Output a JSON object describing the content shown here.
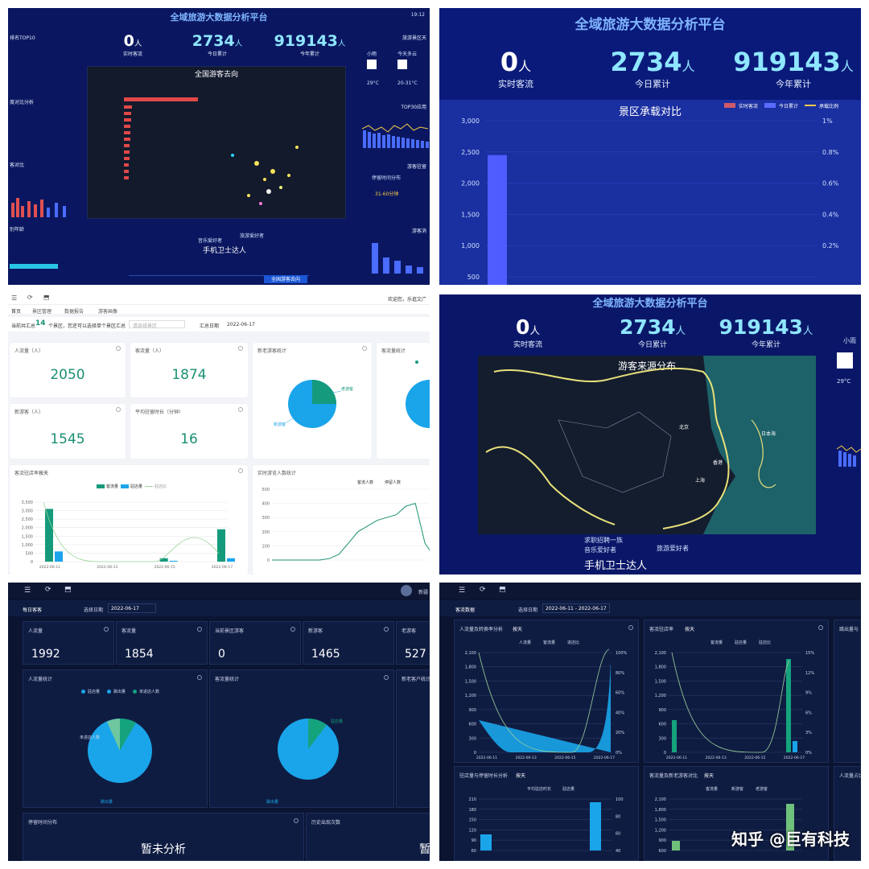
{
  "dashboard": {
    "title": "全域旅游大数据分析平台",
    "time": "19:12",
    "kpi": [
      {
        "value": "0",
        "unit": "人",
        "label": "实时客流"
      },
      {
        "value": "2734",
        "unit": "人",
        "label": "今日累计"
      },
      {
        "value": "919143",
        "unit": "人",
        "label": "今年累计"
      }
    ],
    "left_labels": [
      "排名TOP10",
      "度对比分析",
      "客对比",
      "别年龄"
    ],
    "right_labels": [
      "旅游景区天",
      "TOP30应用",
      "游客驻留",
      "停留时间分布",
      "游客消"
    ],
    "weather": [
      {
        "name": "小雨",
        "temp": "29°C"
      },
      {
        "name": "今天多云",
        "temp": "20-31°C"
      }
    ],
    "stay_range": "31-60分钟",
    "map_title": "全国游客去向",
    "tags": [
      "手机卫士达人",
      "音乐爱好者",
      "旅游爱好者"
    ],
    "bottom_tabs": [
      "全国游客去向"
    ]
  },
  "capacity": {
    "title": "全域旅游大数据分析平台",
    "chart_title": "景区承载对比",
    "legend": [
      "实时客流",
      "今日累计",
      "承载比例"
    ]
  },
  "source": {
    "title": "全域旅游大数据分析平台",
    "map_title": "游客来源分布",
    "weather": {
      "name": "小雨",
      "temp": "29°C"
    },
    "places": [
      "北京",
      "日本海",
      "香港",
      "上海"
    ],
    "tags": [
      "手机卫士达人",
      "音乐爱好者",
      "旅游爱好者",
      "求职招聘一族"
    ]
  },
  "white_admin": {
    "tabs": [
      "首页",
      "景区管理",
      "数据报告",
      "游客画像"
    ],
    "user": "欢迎您，乐逛文广",
    "notice_prefix": "当前共汇总",
    "notice_count": "14",
    "notice_suffix": "个景区，您还可以选择单个景区汇总",
    "select_placeholder": "请选择景区",
    "date_label": "汇总日期",
    "date_value": "2022-06-17",
    "cards": [
      {
        "label": "人流量（人）",
        "value": "2050"
      },
      {
        "label": "客流量（人）",
        "value": "1874"
      },
      {
        "label": "新游客（人）",
        "value": "1545"
      },
      {
        "label": "平均驻留时长（分钟）",
        "value": "16"
      }
    ],
    "pie1_title": "新老游客统计",
    "pie1_labels": [
      "老游客",
      "新游客"
    ],
    "pie2_title": "客流量统计",
    "bar_title": "客流驻店率",
    "bar_select": "按天",
    "bar_legend": [
      "客流量",
      "驻店量",
      "驻店比"
    ],
    "line_title": "实时游览人数统计",
    "line_legend": [
      "客流人数",
      "停留人数"
    ]
  },
  "dark_admin": {
    "section": "每日客客",
    "date_label": "选择日期",
    "date_value": "2022-06-17",
    "cards": [
      {
        "label": "人流量",
        "value": "1992"
      },
      {
        "label": "客流量",
        "value": "1854"
      },
      {
        "label": "当前景区游客",
        "value": "0"
      },
      {
        "label": "新游客",
        "value": "1465"
      },
      {
        "label": "老游客",
        "value": "527"
      }
    ],
    "pie1_title": "人流量统计",
    "pie1_legend": [
      "驻店量",
      "跳出量",
      "未进店人数"
    ],
    "pie2_title": "客流量统计",
    "right_title": "新老客户统计",
    "stay_title": "停留时间分布",
    "history_title": "历史出现次数",
    "no_analysis": "暂未分析",
    "user": "新疆"
  },
  "dark_charts": {
    "section": "客流数据",
    "date_label": "选择日期",
    "date_value": "2022-06-11 - 2022-06-17",
    "charts": [
      {
        "title": "人流量及转换率分析",
        "select": "按天",
        "legend": [
          "人流量",
          "客流量",
          "进店比"
        ]
      },
      {
        "title": "客流驻店率",
        "select": "按天",
        "legend": [
          "客流量",
          "驻店量",
          "驻店比"
        ]
      },
      {
        "title": "驻店量与停留时长分析",
        "select": "按天",
        "legend": [
          "平均驻店时长",
          "驻店量"
        ]
      },
      {
        "title": "客流量及新老游客对比",
        "select": "按天",
        "legend": [
          "客流量",
          "新游客",
          "老游客"
        ]
      }
    ],
    "side_titles": [
      "跳出量与",
      "人流量占比"
    ]
  },
  "watermark": "知乎 @巨有科技",
  "chart_data": [
    {
      "type": "bar",
      "title": "景区承载对比",
      "series": [
        {
          "name": "今日累计",
          "values": [
            2450
          ]
        }
      ],
      "ylim": [
        500,
        3000
      ],
      "yticks": [
        "3,000",
        "2,500",
        "2,000",
        "1,500",
        "1,000",
        "500"
      ],
      "y2ticks": [
        "1%",
        "0.8%",
        "0.6%",
        "0.4%",
        "0.2%"
      ]
    },
    {
      "type": "bar",
      "title": "客流驻店率",
      "categories": [
        "2022-06-11",
        "2022-06-13",
        "2022-06-15",
        "2022-06-17"
      ],
      "series": [
        {
          "name": "客流量",
          "values": [
            3100,
            0,
            200,
            1900
          ]
        },
        {
          "name": "驻店量",
          "values": [
            600,
            0,
            50,
            200
          ]
        }
      ],
      "ylim": [
        0,
        3500
      ],
      "yticks": [
        "3,500",
        "3,000",
        "2,500",
        "2,000",
        "1,500",
        "1,000",
        "500",
        "0"
      ]
    },
    {
      "type": "line",
      "title": "实时游览人数统计",
      "series": [
        {
          "name": "客流人数",
          "values": [
            0,
            0,
            0,
            0,
            0,
            0,
            10,
            40,
            120,
            200,
            240,
            280,
            300,
            320,
            380,
            400,
            120,
            20
          ]
        }
      ],
      "ylim": [
        0,
        500
      ],
      "yticks": [
        "500",
        "400",
        "300",
        "200",
        "100",
        "0"
      ]
    },
    {
      "type": "pie",
      "title": "新老游客统计",
      "categories": [
        "老游客",
        "新游客"
      ],
      "values": [
        25,
        75
      ]
    },
    {
      "type": "bar",
      "title": "人流量及转换率分析",
      "categories": [
        "2022-06-11",
        "2022-06-13",
        "2022-06-15",
        "2022-06-17"
      ],
      "yticks": [
        "2,100",
        "1,800",
        "1,500",
        "1,200",
        "900",
        "600",
        "300",
        "0"
      ],
      "y2ticks": [
        "100%",
        "80%",
        "60%",
        "40%",
        "20%",
        "0%"
      ]
    },
    {
      "type": "bar",
      "title": "客流驻店率",
      "categories": [
        "2022-06-11",
        "2022-06-13",
        "2022-06-15",
        "2022-06-17"
      ],
      "yticks": [
        "2,100",
        "1,800",
        "1,500",
        "1,200",
        "900",
        "600",
        "300",
        "0"
      ],
      "y2ticks": [
        "15%",
        "12%",
        "9%",
        "6%",
        "3%",
        "0%"
      ]
    },
    {
      "type": "bar",
      "title": "驻店量与停留时长分析",
      "yticks": [
        "210",
        "180",
        "150",
        "120",
        "90",
        "60"
      ],
      "y2ticks": [
        "100",
        "80",
        "60",
        "40"
      ]
    },
    {
      "type": "bar",
      "title": "客流量及新老游客对比",
      "yticks": [
        "2,100",
        "1,800",
        "1,500",
        "1,200",
        "900",
        "600"
      ]
    }
  ]
}
